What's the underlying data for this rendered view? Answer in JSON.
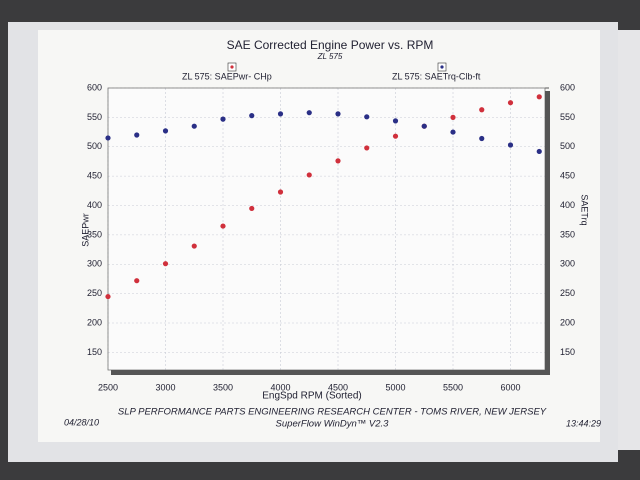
{
  "chart_data": {
    "type": "scatter",
    "title": "SAE Corrected Engine Power vs. RPM",
    "subtitle": "ZL 575",
    "x_label": "EngSpd  RPM   (Sorted)",
    "y_label": "SAEPwr",
    "y2_label": "SAETrq",
    "x": [
      2500,
      2750,
      3000,
      3250,
      3500,
      3750,
      4000,
      4250,
      4500,
      4750,
      5000,
      5250,
      5500,
      5750,
      6000,
      6250
    ],
    "series": [
      {
        "name": "ZL 575: SAEPwr- CHp",
        "color": "#d0303c",
        "values": [
          245,
          272,
          301,
          331,
          365,
          395,
          423,
          452,
          476,
          498,
          518,
          535,
          550,
          563,
          575,
          585
        ]
      },
      {
        "name": "ZL 575: SAETrq-Clb-ft",
        "color": "#2a2f86",
        "axis": "y2",
        "values": [
          515,
          520,
          527,
          535,
          547,
          553,
          556,
          558,
          556,
          551,
          544,
          535,
          525,
          514,
          503,
          492
        ]
      }
    ],
    "xlim": [
      2500,
      6300
    ],
    "xticks": [
      2500,
      3000,
      3500,
      4000,
      4500,
      5000,
      5500,
      6000
    ],
    "ylim": [
      120,
      600
    ],
    "yticks": [
      150,
      200,
      250,
      300,
      350,
      400,
      450,
      500,
      550,
      600
    ],
    "y2lim": [
      120,
      600
    ],
    "y2ticks": [
      150,
      200,
      250,
      300,
      350,
      400,
      450,
      500,
      550,
      600
    ],
    "grid": true,
    "footer": {
      "date": "04/28/10",
      "lab": "SLP PERFORMANCE PARTS ENGINEERING RESEARCH CENTER - TOMS RIVER, NEW JERSEY",
      "software": "SuperFlow WinDyn™  V2.3",
      "time": "13:44:29"
    }
  }
}
